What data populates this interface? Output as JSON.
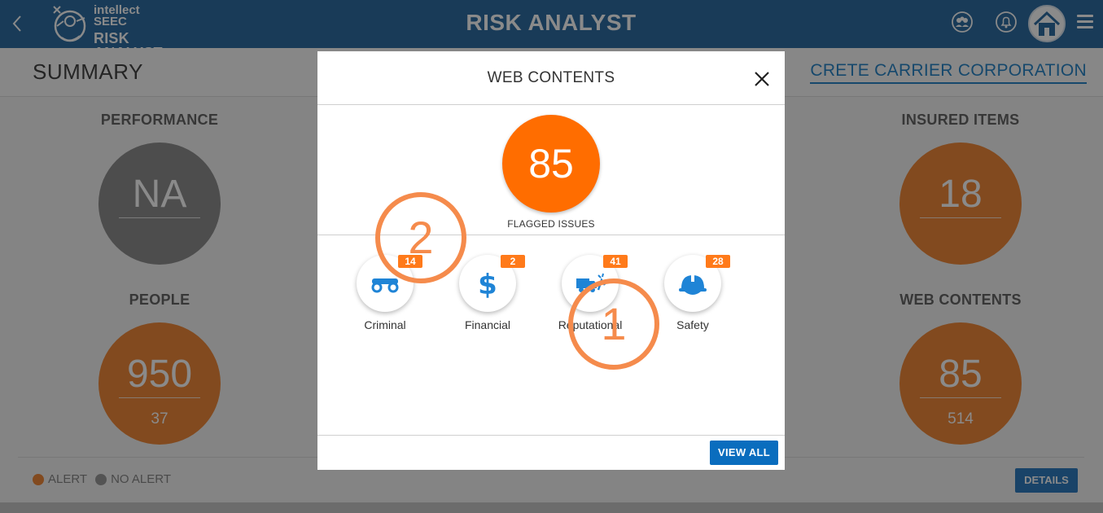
{
  "header": {
    "logo_line1": "intellect",
    "logo_line2": "SEEC",
    "logo_product": "RISK ANALYST",
    "title": "RISK ANALYST"
  },
  "summary": {
    "title": "SUMMARY",
    "company": "CRETE CARRIER CORPORATION",
    "tiles": {
      "performance": {
        "title": "PERFORMANCE",
        "value": "NA"
      },
      "people": {
        "title": "PEOPLE",
        "value": "950",
        "sub": "37"
      },
      "insured_items": {
        "title": "INSURED ITEMS",
        "value": "18"
      },
      "web_contents": {
        "title": "WEB CONTENTS",
        "value": "85",
        "sub": "514"
      }
    },
    "legend": {
      "alert": "ALERT",
      "no_alert": "NO ALERT"
    },
    "details_label": "DETAILS"
  },
  "modal": {
    "title": "WEB CONTENTS",
    "flagged_count": "85",
    "flagged_label": "FLAGGED ISSUES",
    "categories": [
      {
        "label": "Criminal",
        "count": "14",
        "icon": "handcuffs-icon"
      },
      {
        "label": "Financial",
        "count": "2",
        "icon": "dollar-icon"
      },
      {
        "label": "Reputational",
        "count": "41",
        "icon": "truck-crash-icon"
      },
      {
        "label": "Safety",
        "count": "28",
        "icon": "hard-hat-icon"
      }
    ],
    "view_all_label": "VIEW ALL"
  },
  "annotations": {
    "first": "1",
    "second": "2"
  },
  "colors": {
    "header_blue": "#2f6ea3",
    "alert_orange": "#f08a3a",
    "no_alert_grey": "#8e8e8e",
    "flag_orange": "#ff6d00",
    "icon_blue": "#1f84d6",
    "annotation_orange": "#f58b4c"
  }
}
